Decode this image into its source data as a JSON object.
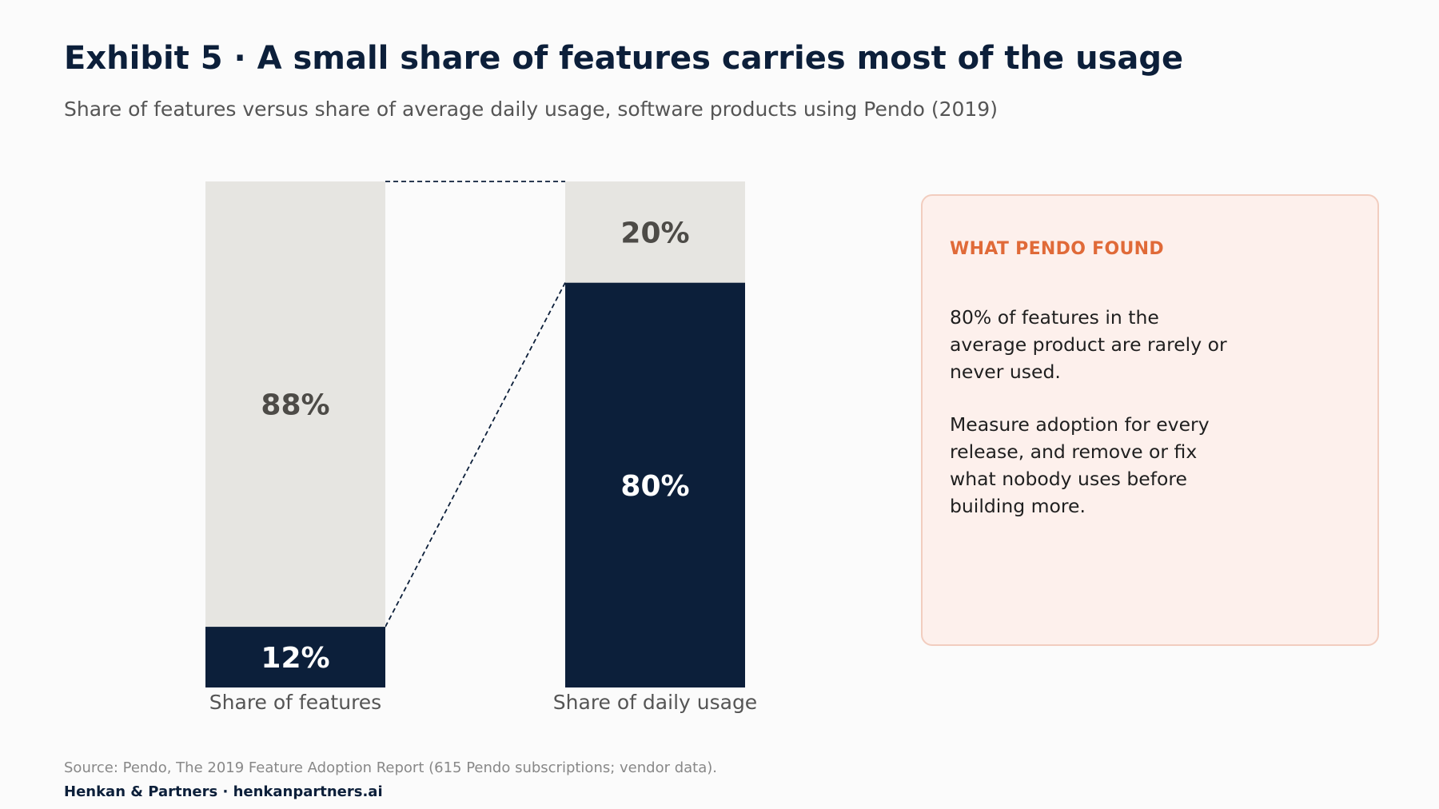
{
  "header": {
    "title": "Exhibit 5 · A small share of features carries most of the usage",
    "subtitle": "Share of features versus share of average daily usage, software products using Pendo (2019)"
  },
  "chart_data": {
    "type": "bar",
    "stacked": true,
    "percent_stacked": true,
    "title": "",
    "xlabel": "",
    "ylabel": "",
    "ylim": [
      0,
      100
    ],
    "grid": false,
    "categories": [
      "Share of features",
      "Share of daily usage"
    ],
    "series": [
      {
        "values": [
          12,
          80
        ],
        "labels": [
          "12%",
          "80%"
        ],
        "color": "#0c1f3a",
        "label_color": "#ffffff"
      },
      {
        "values": [
          88,
          20
        ],
        "labels": [
          "88%",
          "20%"
        ],
        "color": "#e6e5e1",
        "label_color": "#4d4b47"
      }
    ],
    "connector": "dashed",
    "connector_color": "#0c1f3a"
  },
  "callout": {
    "heading": "WHAT PENDO FOUND",
    "paragraph_1": "80% of features in the average product are rarely or never used.",
    "paragraph_2": "Measure adoption for every release, and remove or fix what nobody uses before building more."
  },
  "footer": {
    "source": "Source: Pendo, The 2019 Feature Adoption Report (615 Pendo subscriptions; vendor data).",
    "brand": "Henkan & Partners · henkanpartners.ai"
  }
}
